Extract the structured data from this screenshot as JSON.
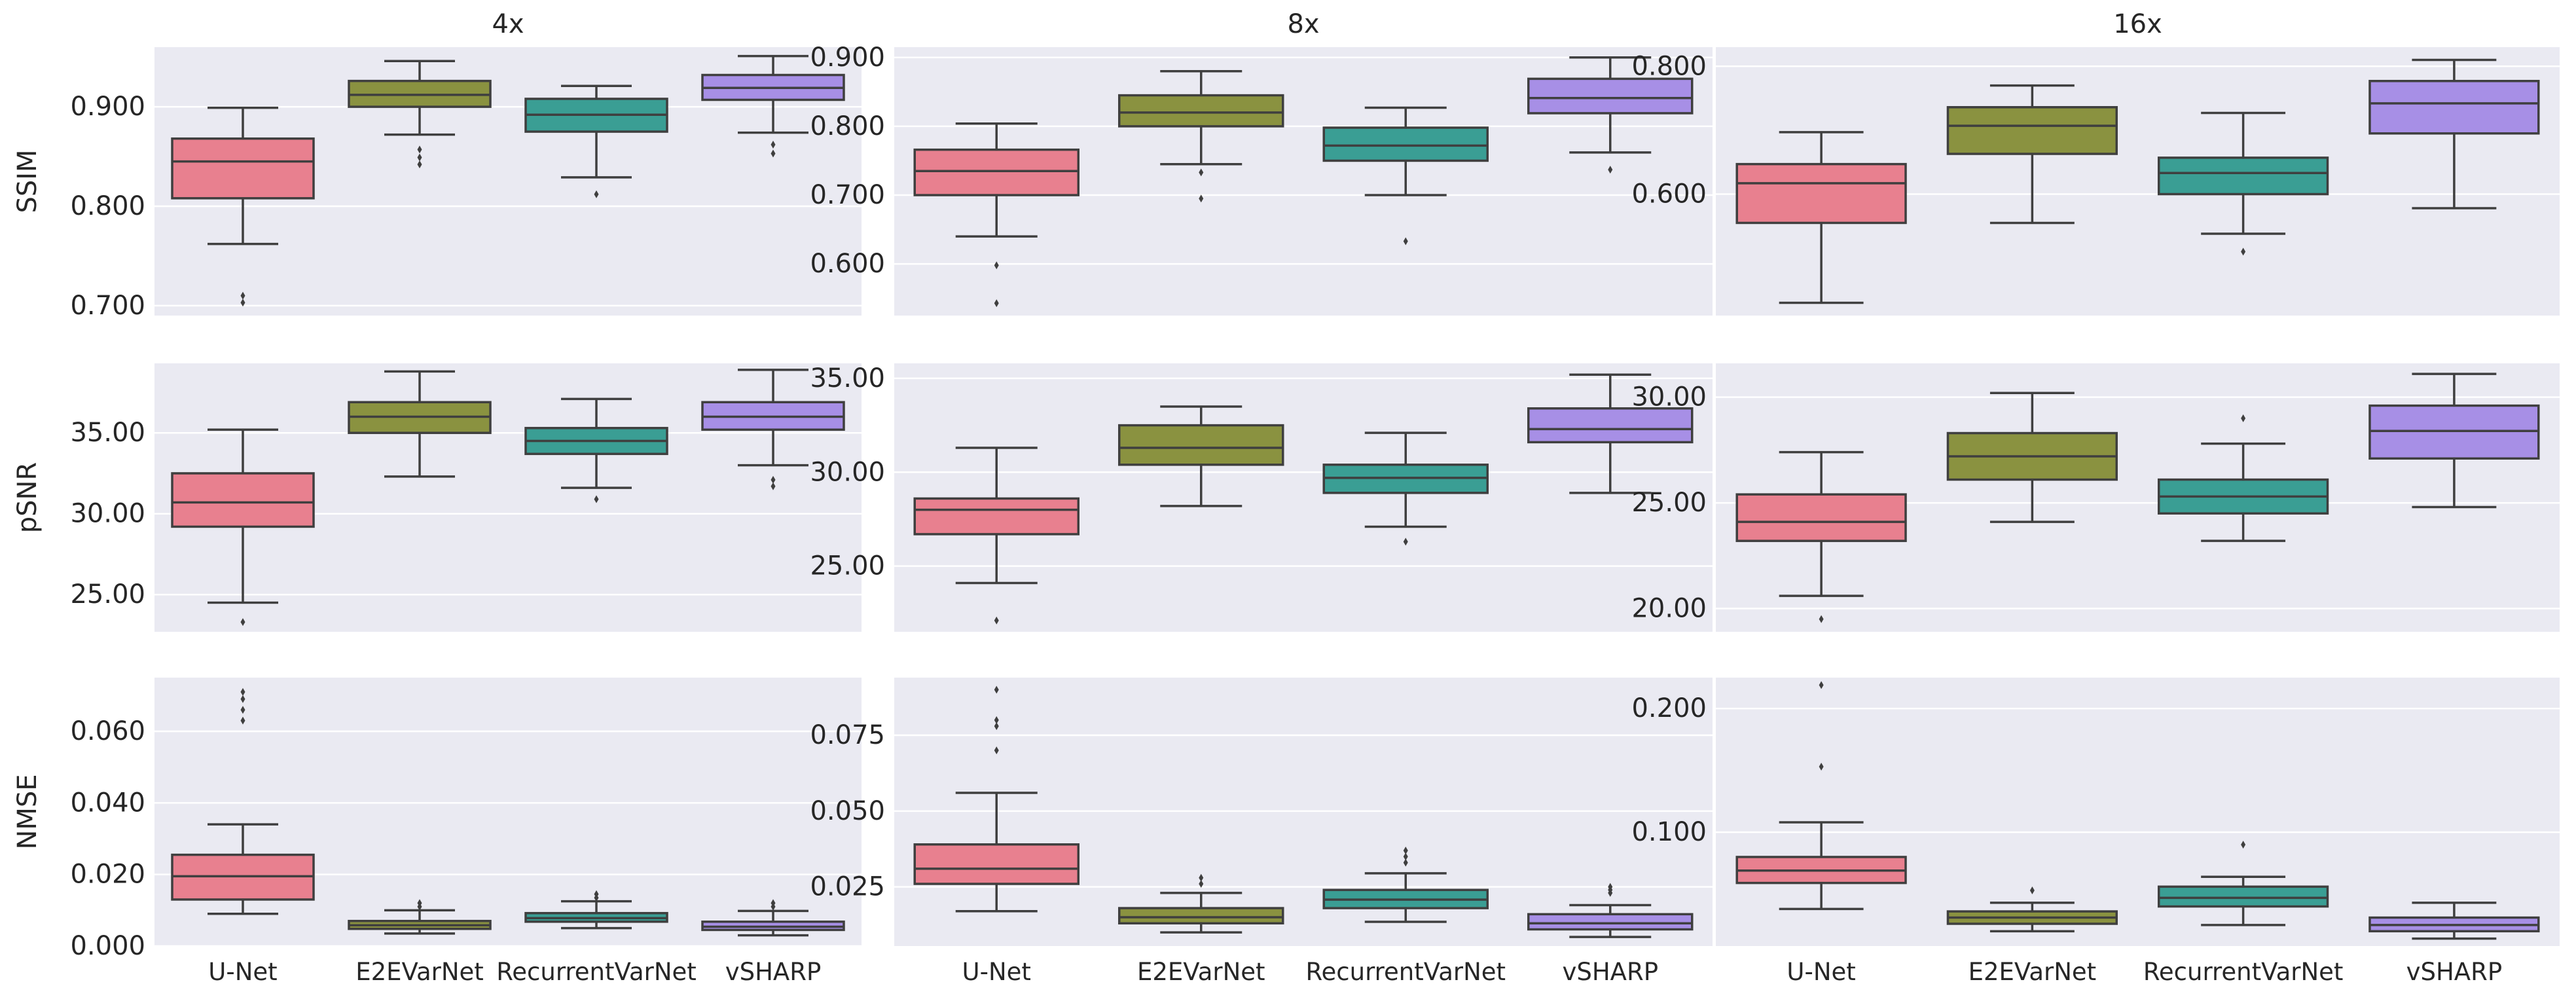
{
  "figure": {
    "columns": [
      "4x",
      "8x",
      "16x"
    ],
    "rows": [
      "SSIM",
      "pSNR",
      "NMSE"
    ],
    "categories": [
      "U-Net",
      "E2EVarNet",
      "RecurrentVarNet",
      "vSHARP"
    ]
  },
  "colors": {
    "panel_bg": "#eaeaf2",
    "grid": "#ffffff",
    "box_edge": "#3f3f3f",
    "series": [
      "#e8808f",
      "#8a9240",
      "#3a9e94",
      "#a78fe6"
    ]
  },
  "chart_data": [
    {
      "type": "box",
      "title": "4x",
      "xlabel": "",
      "ylabel": "SSIM",
      "ylim": [
        0.69,
        0.96
      ],
      "yticks": [
        0.7,
        0.8,
        0.9
      ],
      "tick_labels": [
        "0.700",
        "0.800",
        "0.900"
      ],
      "categories": [
        "U-Net",
        "E2EVarNet",
        "RecurrentVarNet",
        "vSHARP"
      ],
      "boxes": [
        {
          "whislo": 0.762,
          "q1": 0.808,
          "med": 0.845,
          "q3": 0.868,
          "whishi": 0.899,
          "fliers": [
            0.71,
            0.703
          ]
        },
        {
          "whislo": 0.872,
          "q1": 0.9,
          "med": 0.912,
          "q3": 0.926,
          "whishi": 0.946,
          "fliers": [
            0.857,
            0.849,
            0.842
          ]
        },
        {
          "whislo": 0.829,
          "q1": 0.875,
          "med": 0.892,
          "q3": 0.908,
          "whishi": 0.921,
          "fliers": [
            0.812
          ]
        },
        {
          "whislo": 0.874,
          "q1": 0.907,
          "med": 0.919,
          "q3": 0.932,
          "whishi": 0.951,
          "fliers": [
            0.862,
            0.853
          ]
        }
      ]
    },
    {
      "type": "box",
      "title": "8x",
      "xlabel": "",
      "ylabel": "",
      "ylim": [
        0.525,
        0.915
      ],
      "yticks": [
        0.6,
        0.7,
        0.8,
        0.9
      ],
      "tick_labels": [
        "0.600",
        "0.700",
        "0.800",
        "0.900"
      ],
      "categories": [
        "U-Net",
        "E2EVarNet",
        "RecurrentVarNet",
        "vSHARP"
      ],
      "boxes": [
        {
          "whislo": 0.64,
          "q1": 0.7,
          "med": 0.735,
          "q3": 0.766,
          "whishi": 0.804,
          "fliers": [
            0.598,
            0.543
          ]
        },
        {
          "whislo": 0.745,
          "q1": 0.8,
          "med": 0.82,
          "q3": 0.845,
          "whishi": 0.88,
          "fliers": [
            0.733,
            0.695
          ]
        },
        {
          "whislo": 0.7,
          "q1": 0.75,
          "med": 0.772,
          "q3": 0.798,
          "whishi": 0.827,
          "fliers": [
            0.633
          ]
        },
        {
          "whislo": 0.762,
          "q1": 0.819,
          "med": 0.841,
          "q3": 0.869,
          "whishi": 0.9,
          "fliers": [
            0.737
          ]
        }
      ]
    },
    {
      "type": "box",
      "title": "16x",
      "xlabel": "",
      "ylabel": "",
      "ylim": [
        0.41,
        0.83
      ],
      "yticks": [
        0.6,
        0.8
      ],
      "tick_labels": [
        "0.600",
        "0.800"
      ],
      "categories": [
        "U-Net",
        "E2EVarNet",
        "RecurrentVarNet",
        "vSHARP"
      ],
      "boxes": [
        {
          "whislo": 0.43,
          "q1": 0.555,
          "med": 0.617,
          "q3": 0.647,
          "whishi": 0.697,
          "fliers": []
        },
        {
          "whislo": 0.555,
          "q1": 0.663,
          "med": 0.707,
          "q3": 0.736,
          "whishi": 0.77,
          "fliers": []
        },
        {
          "whislo": 0.538,
          "q1": 0.6,
          "med": 0.633,
          "q3": 0.657,
          "whishi": 0.727,
          "fliers": [
            0.51
          ]
        },
        {
          "whislo": 0.578,
          "q1": 0.695,
          "med": 0.742,
          "q3": 0.777,
          "whishi": 0.81,
          "fliers": []
        }
      ]
    },
    {
      "type": "box",
      "title": "",
      "xlabel": "",
      "ylabel": "pSNR",
      "ylim": [
        22.7,
        39.3
      ],
      "yticks": [
        25,
        30,
        35
      ],
      "tick_labels": [
        "25.00",
        "30.00",
        "35.00"
      ],
      "categories": [
        "U-Net",
        "E2EVarNet",
        "RecurrentVarNet",
        "vSHARP"
      ],
      "boxes": [
        {
          "whislo": 24.5,
          "q1": 29.2,
          "med": 30.7,
          "q3": 32.5,
          "whishi": 35.2,
          "fliers": [
            23.3
          ]
        },
        {
          "whislo": 32.3,
          "q1": 35.0,
          "med": 36.0,
          "q3": 36.9,
          "whishi": 38.8,
          "fliers": []
        },
        {
          "whislo": 31.6,
          "q1": 33.7,
          "med": 34.5,
          "q3": 35.3,
          "whishi": 37.1,
          "fliers": [
            30.9
          ]
        },
        {
          "whislo": 33.0,
          "q1": 35.2,
          "med": 36.0,
          "q3": 36.9,
          "whishi": 38.9,
          "fliers": [
            32.1,
            31.7
          ]
        }
      ]
    },
    {
      "type": "box",
      "title": "",
      "xlabel": "",
      "ylabel": "",
      "ylim": [
        21.5,
        35.8
      ],
      "yticks": [
        25,
        30,
        35
      ],
      "tick_labels": [
        "25.00",
        "30.00",
        "35.00"
      ],
      "categories": [
        "U-Net",
        "E2EVarNet",
        "RecurrentVarNet",
        "vSHARP"
      ],
      "boxes": [
        {
          "whislo": 24.1,
          "q1": 26.7,
          "med": 28.0,
          "q3": 28.6,
          "whishi": 31.3,
          "fliers": [
            22.1
          ]
        },
        {
          "whislo": 28.2,
          "q1": 30.4,
          "med": 31.3,
          "q3": 32.5,
          "whishi": 33.5,
          "fliers": []
        },
        {
          "whislo": 27.1,
          "q1": 28.9,
          "med": 29.7,
          "q3": 30.4,
          "whishi": 32.1,
          "fliers": [
            26.3
          ]
        },
        {
          "whislo": 28.9,
          "q1": 31.6,
          "med": 32.3,
          "q3": 33.4,
          "whishi": 35.2,
          "fliers": []
        }
      ]
    },
    {
      "type": "box",
      "title": "",
      "xlabel": "",
      "ylabel": "",
      "ylim": [
        18.9,
        31.6
      ],
      "yticks": [
        20,
        25,
        30
      ],
      "tick_labels": [
        "20.00",
        "25.00",
        "30.00"
      ],
      "categories": [
        "U-Net",
        "E2EVarNet",
        "RecurrentVarNet",
        "vSHARP"
      ],
      "boxes": [
        {
          "whislo": 20.6,
          "q1": 23.2,
          "med": 24.1,
          "q3": 25.4,
          "whishi": 27.4,
          "fliers": [
            19.5
          ]
        },
        {
          "whislo": 24.1,
          "q1": 26.1,
          "med": 27.2,
          "q3": 28.3,
          "whishi": 30.2,
          "fliers": []
        },
        {
          "whislo": 23.2,
          "q1": 24.5,
          "med": 25.3,
          "q3": 26.1,
          "whishi": 27.8,
          "fliers": [
            29.0
          ]
        },
        {
          "whislo": 24.8,
          "q1": 27.1,
          "med": 28.4,
          "q3": 29.6,
          "whishi": 31.1,
          "fliers": []
        }
      ]
    },
    {
      "type": "box",
      "title": "",
      "xlabel": "",
      "ylabel": "NMSE",
      "ylim": [
        0.0,
        0.075
      ],
      "yticks": [
        0.0,
        0.02,
        0.04,
        0.06
      ],
      "tick_labels": [
        "0.000",
        "0.020",
        "0.040",
        "0.060"
      ],
      "categories": [
        "U-Net",
        "E2EVarNet",
        "RecurrentVarNet",
        "vSHARP"
      ],
      "boxes": [
        {
          "whislo": 0.009,
          "q1": 0.013,
          "med": 0.0195,
          "q3": 0.0255,
          "whishi": 0.034,
          "fliers": [
            0.063,
            0.066,
            0.069,
            0.071
          ]
        },
        {
          "whislo": 0.0035,
          "q1": 0.0048,
          "med": 0.0058,
          "q3": 0.007,
          "whishi": 0.01,
          "fliers": [
            0.011,
            0.012
          ]
        },
        {
          "whislo": 0.005,
          "q1": 0.0068,
          "med": 0.0078,
          "q3": 0.0092,
          "whishi": 0.0125,
          "fliers": [
            0.0135,
            0.0145
          ]
        },
        {
          "whislo": 0.003,
          "q1": 0.0045,
          "med": 0.0054,
          "q3": 0.0068,
          "whishi": 0.0098,
          "fliers": [
            0.011,
            0.012
          ]
        }
      ]
    },
    {
      "type": "box",
      "title": "",
      "xlabel": "",
      "ylabel": "",
      "ylim": [
        0.0055,
        0.094
      ],
      "yticks": [
        0.025,
        0.05,
        0.075
      ],
      "tick_labels": [
        "0.025",
        "0.050",
        "0.075"
      ],
      "categories": [
        "U-Net",
        "E2EVarNet",
        "RecurrentVarNet",
        "vSHARP"
      ],
      "boxes": [
        {
          "whislo": 0.017,
          "q1": 0.026,
          "med": 0.031,
          "q3": 0.039,
          "whishi": 0.056,
          "fliers": [
            0.07,
            0.078,
            0.08,
            0.09
          ]
        },
        {
          "whislo": 0.01,
          "q1": 0.013,
          "med": 0.015,
          "q3": 0.018,
          "whishi": 0.023,
          "fliers": [
            0.026,
            0.028
          ]
        },
        {
          "whislo": 0.0135,
          "q1": 0.018,
          "med": 0.0208,
          "q3": 0.024,
          "whishi": 0.0295,
          "fliers": [
            0.033,
            0.035,
            0.037
          ]
        },
        {
          "whislo": 0.0085,
          "q1": 0.011,
          "med": 0.013,
          "q3": 0.016,
          "whishi": 0.019,
          "fliers": [
            0.023,
            0.024,
            0.025
          ]
        }
      ]
    },
    {
      "type": "box",
      "title": "",
      "xlabel": "",
      "ylabel": "",
      "ylim": [
        0.008,
        0.225
      ],
      "yticks": [
        0.1,
        0.2
      ],
      "tick_labels": [
        "0.100",
        "0.200"
      ],
      "categories": [
        "U-Net",
        "E2EVarNet",
        "RecurrentVarNet",
        "vSHARP"
      ],
      "boxes": [
        {
          "whislo": 0.038,
          "q1": 0.059,
          "med": 0.069,
          "q3": 0.08,
          "whishi": 0.108,
          "fliers": [
            0.153,
            0.219
          ]
        },
        {
          "whislo": 0.02,
          "q1": 0.026,
          "med": 0.031,
          "q3": 0.036,
          "whishi": 0.043,
          "fliers": [
            0.053
          ]
        },
        {
          "whislo": 0.025,
          "q1": 0.04,
          "med": 0.047,
          "q3": 0.056,
          "whishi": 0.064,
          "fliers": [
            0.09
          ]
        },
        {
          "whislo": 0.014,
          "q1": 0.02,
          "med": 0.025,
          "q3": 0.031,
          "whishi": 0.043,
          "fliers": []
        }
      ]
    }
  ]
}
